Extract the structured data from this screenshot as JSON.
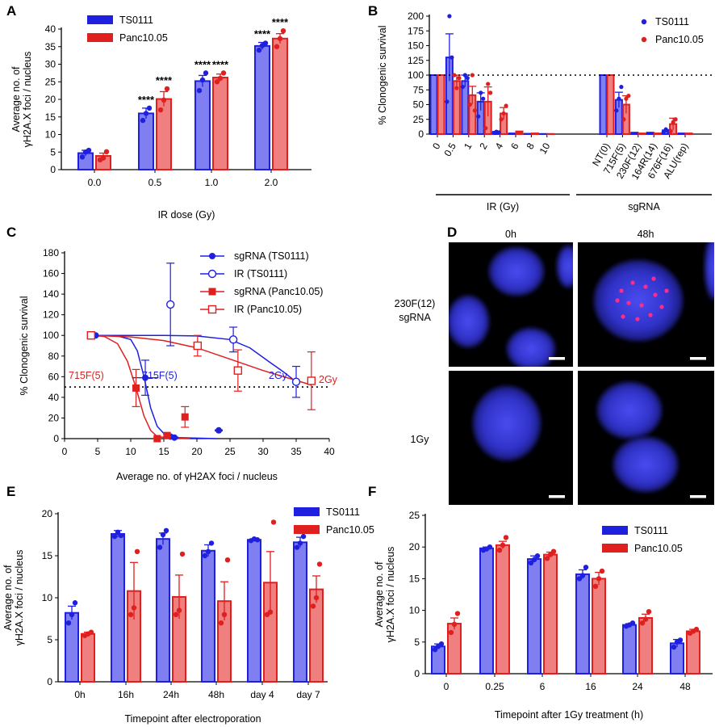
{
  "panels": [
    {
      "id": "A"
    },
    {
      "id": "B"
    },
    {
      "id": "C"
    },
    {
      "id": "D"
    },
    {
      "id": "E"
    },
    {
      "id": "F"
    }
  ],
  "colors": {
    "ts0111": "#1f1fe0",
    "panc": "#e01f1f",
    "ts0111_fill": "#7f7ff2",
    "panc_fill": "#f07f7f"
  },
  "chart_data": [
    {
      "panel": "A",
      "type": "bar",
      "title": "",
      "xlabel": "IR dose (Gy)",
      "ylabel_lines": [
        "Average no. of",
        "γH2A.X foci / nucleus"
      ],
      "categories": [
        "0.0",
        "0.5",
        "1.0",
        "2.0"
      ],
      "ylim": [
        0,
        40
      ],
      "yticks": [
        0,
        5,
        10,
        15,
        20,
        25,
        30,
        35,
        40
      ],
      "legend_position": "top-left",
      "series": [
        {
          "name": "TS0111",
          "color": "#1f1fe0",
          "values": [
            4.7,
            16.0,
            25.2,
            35.2
          ],
          "errors": [
            0.8,
            1.5,
            1.6,
            1.0
          ],
          "points": [
            [
              3.6,
              5.0,
              5.5
            ],
            [
              14.0,
              16.0,
              17.5
            ],
            [
              22.5,
              25.5,
              27.5
            ],
            [
              34.0,
              35.3,
              36.0
            ]
          ]
        },
        {
          "name": "Panc10.05",
          "color": "#e01f1f",
          "values": [
            3.9,
            20.1,
            26.2,
            37.3
          ],
          "errors": [
            0.8,
            2.1,
            1.0,
            1.4
          ],
          "points": [
            [
              2.8,
              3.3,
              5.1
            ],
            [
              17.0,
              19.8,
              23.0
            ],
            [
              25.0,
              26.0,
              27.5
            ],
            [
              35.0,
              37.3,
              39.5
            ]
          ]
        }
      ],
      "annotations": [
        {
          "category": "0.5",
          "series": "TS0111",
          "text": "****"
        },
        {
          "category": "0.5",
          "series": "Panc10.05",
          "text": "****"
        },
        {
          "category": "1.0",
          "series": "TS0111",
          "text": "****"
        },
        {
          "category": "1.0",
          "series": "Panc10.05",
          "text": "****"
        },
        {
          "category": "2.0",
          "series": "TS0111",
          "text": "****"
        },
        {
          "category": "2.0",
          "series": "Panc10.05",
          "text": "****"
        }
      ]
    },
    {
      "panel": "B",
      "type": "bar",
      "title": "",
      "ylabel": "% Clonogenic survival",
      "categories": [
        "0",
        "0.5",
        "1",
        "2",
        "4",
        "6",
        "8",
        "10",
        "NT(0)",
        "715F(5)",
        "230F(12)",
        "164R(14)",
        "676F(16)",
        "ALU(rep)"
      ],
      "groups": [
        {
          "label": "IR (Gy)",
          "from": 0,
          "to": 7
        },
        {
          "label": "sgRNA",
          "from": 8,
          "to": 13
        }
      ],
      "ylim": [
        0,
        200
      ],
      "yticks": [
        0,
        25,
        50,
        75,
        100,
        125,
        150,
        175,
        200
      ],
      "reference_line": 100,
      "legend_position": "top-right",
      "series": [
        {
          "name": "TS0111",
          "color": "#1f1fe0",
          "values": [
            100,
            130,
            90,
            55,
            3,
            1,
            0.5,
            0.3,
            100,
            58,
            2,
            2,
            5,
            1
          ],
          "errors": [
            0,
            40,
            10,
            15,
            1.5,
            0.5,
            0.3,
            0.2,
            0,
            13,
            1,
            1,
            2,
            0.5
          ]
        },
        {
          "name": "Panc10.05",
          "color": "#e01f1f",
          "values": [
            100,
            90,
            66,
            55,
            35,
            3,
            1,
            0.3,
            100,
            50,
            1,
            1,
            17,
            1
          ],
          "errors": [
            0,
            10,
            15,
            25,
            10,
            2,
            0.5,
            0.2,
            0,
            15,
            0.5,
            0.5,
            10,
            0.5
          ]
        }
      ]
    },
    {
      "panel": "C",
      "type": "scatter",
      "title": "",
      "xlabel": "Average no. of γH2AX foci / nucleus",
      "ylabel": "% Clonogenic survival",
      "xlim": [
        0,
        40
      ],
      "ylim": [
        0,
        180
      ],
      "xticks": [
        0,
        5,
        10,
        15,
        20,
        25,
        30,
        35,
        40
      ],
      "yticks": [
        0,
        20,
        40,
        60,
        80,
        100,
        120,
        140,
        160,
        180
      ],
      "reference_line": 50,
      "legend_position": "top-right",
      "series": [
        {
          "name": "sgRNA (TS0111)",
          "color": "#1f1fe0",
          "marker": "filled-circle",
          "points": [
            [
              4.7,
              100,
              0,
              0
            ],
            [
              12.2,
              59,
              2,
              17
            ],
            [
              16.0,
              2,
              0,
              1
            ],
            [
              16.6,
              1,
              0,
              0.5
            ],
            [
              23.3,
              8,
              0,
              0.5
            ]
          ]
        },
        {
          "name": "IR (TS0111)",
          "color": "#1f1fe0",
          "marker": "open-circle",
          "points": [
            [
              16.0,
              130,
              0,
              40
            ],
            [
              25.5,
              96,
              0,
              12
            ],
            [
              35.0,
              55,
              0,
              15
            ]
          ]
        },
        {
          "name": "sgRNA (Panc10.05)",
          "color": "#e01f1f",
          "marker": "filled-square",
          "points": [
            [
              4.0,
              100,
              0,
              0
            ],
            [
              10.8,
              49,
              0,
              18
            ],
            [
              14.0,
              0,
              0,
              0.5
            ],
            [
              15.5,
              3,
              0,
              1
            ],
            [
              18.2,
              21,
              0,
              10
            ]
          ]
        },
        {
          "name": "IR (Panc10.05)",
          "color": "#e01f1f",
          "marker": "open-square",
          "points": [
            [
              4.0,
              100,
              0,
              0
            ],
            [
              20.1,
              90,
              0,
              10
            ],
            [
              26.2,
              66,
              0,
              20
            ],
            [
              37.3,
              56,
              0,
              28
            ]
          ]
        }
      ],
      "curves": [
        {
          "color": "#1f1fe0",
          "points": [
            [
              4.7,
              100
            ],
            [
              8,
              99.5
            ],
            [
              10,
              96
            ],
            [
              11,
              85
            ],
            [
              12,
              60
            ],
            [
              13,
              30
            ],
            [
              14,
              12
            ],
            [
              15,
              5
            ],
            [
              16,
              2
            ],
            [
              17,
              1
            ],
            [
              23,
              0
            ]
          ]
        },
        {
          "color": "#1f1fe0",
          "points": [
            [
              5,
              100
            ],
            [
              15,
              100
            ],
            [
              20,
              99.5
            ],
            [
              25,
              96
            ],
            [
              28,
              88
            ],
            [
              31,
              74
            ],
            [
              33,
              65
            ],
            [
              35,
              55
            ]
          ]
        },
        {
          "color": "#e01f1f",
          "points": [
            [
              4,
              100
            ],
            [
              6,
              99
            ],
            [
              8,
              92
            ],
            [
              9.5,
              75
            ],
            [
              10.8,
              49
            ],
            [
              12,
              22
            ],
            [
              13,
              8
            ],
            [
              14,
              2
            ],
            [
              16,
              0.5
            ],
            [
              19,
              0
            ]
          ]
        },
        {
          "color": "#e01f1f",
          "points": [
            [
              4,
              100
            ],
            [
              10,
              98.5
            ],
            [
              15,
              95
            ],
            [
              20,
              88
            ],
            [
              25,
              77
            ],
            [
              30,
              66
            ],
            [
              37.3,
              52
            ]
          ]
        }
      ],
      "annotations": [
        {
          "text": "715F(5)",
          "color": "#e01f1f"
        },
        {
          "text": "715F(5)",
          "color": "#1f1fe0"
        },
        {
          "text": "2Gy",
          "color": "#1f1fe0"
        },
        {
          "text": "2Gy",
          "color": "#e01f1f"
        }
      ]
    },
    {
      "panel": "E",
      "type": "bar",
      "title": "",
      "xlabel": "Timepoint after electroporation",
      "ylabel_lines": [
        "Average no. of",
        "γH2A.X foci / nucleus"
      ],
      "categories": [
        "0h",
        "16h",
        "24h",
        "48h",
        "day 4",
        "day 7"
      ],
      "ylim": [
        0,
        20
      ],
      "yticks": [
        0,
        5,
        10,
        15,
        20
      ],
      "legend_position": "top-right",
      "series": [
        {
          "name": "TS0111",
          "color": "#1f1fe0",
          "values": [
            8.2,
            17.6,
            17.0,
            15.6,
            16.9,
            16.6
          ],
          "errors": [
            0.8,
            0.4,
            0.7,
            0.7,
            0.1,
            0.6
          ],
          "points": [
            [
              7.0,
              8.0,
              9.4
            ],
            [
              17.3,
              17.8,
              17.4
            ],
            [
              16.0,
              17.5,
              18.0
            ],
            [
              15.0,
              15.5,
              16.5
            ],
            [
              16.8,
              17.0,
              16.9
            ],
            [
              16.0,
              16.5,
              17.3
            ]
          ]
        },
        {
          "name": "Panc10.05",
          "color": "#e01f1f",
          "values": [
            5.7,
            10.8,
            10.1,
            9.6,
            11.8,
            11.0
          ],
          "errors": [
            0.2,
            3.4,
            2.6,
            2.3,
            3.7,
            1.6
          ],
          "points": [
            [
              5.5,
              5.7,
              5.9
            ],
            [
              8.0,
              8.8,
              15.5
            ],
            [
              8.0,
              8.5,
              15.2
            ],
            [
              7.0,
              8.0,
              14.5
            ],
            [
              8.0,
              8.3,
              19.0
            ],
            [
              9.0,
              10.0,
              14.0
            ]
          ]
        }
      ]
    },
    {
      "panel": "F",
      "type": "bar",
      "title": "",
      "xlabel": "Timepoint after 1Gy treatment (h)",
      "ylabel_lines": [
        "Average no. of",
        "γH2A.X foci / nucleus"
      ],
      "categories": [
        "0",
        "0.25",
        "6",
        "16",
        "24",
        "48"
      ],
      "ylim": [
        0,
        25
      ],
      "yticks": [
        0,
        5,
        10,
        15,
        20,
        25
      ],
      "legend_position": "top-right",
      "series": [
        {
          "name": "TS0111",
          "color": "#1f1fe0",
          "values": [
            4.3,
            19.8,
            18.1,
            15.7,
            7.7,
            4.8
          ],
          "errors": [
            0.4,
            0.2,
            0.5,
            0.7,
            0.2,
            0.6
          ],
          "points": [
            [
              3.8,
              4.3,
              4.7
            ],
            [
              19.5,
              19.7,
              20.0
            ],
            [
              17.5,
              18.0,
              18.6
            ],
            [
              15.0,
              15.5,
              16.8
            ],
            [
              7.5,
              7.7,
              8.0
            ],
            [
              4.2,
              5.0,
              5.3
            ]
          ]
        },
        {
          "name": "Panc10.05",
          "color": "#e01f1f",
          "values": [
            7.9,
            20.3,
            18.8,
            15.0,
            8.8,
            6.7
          ],
          "errors": [
            0.9,
            0.6,
            0.4,
            1.0,
            0.6,
            0.3
          ],
          "points": [
            [
              6.5,
              7.8,
              9.5
            ],
            [
              19.5,
              20.3,
              21.5
            ],
            [
              18.2,
              18.8,
              19.3
            ],
            [
              13.8,
              15.0,
              16.2
            ],
            [
              8.0,
              8.6,
              9.8
            ],
            [
              6.4,
              6.7,
              7.0
            ]
          ]
        }
      ]
    }
  ],
  "microscopy": {
    "col_labels": [
      "0h",
      "48h"
    ],
    "row_labels": [
      [
        "230F(12)",
        "sgRNA"
      ],
      [
        "1Gy"
      ]
    ],
    "cells": [
      "230F(12) sgRNA 0h",
      "230F(12) sgRNA 48h",
      "1Gy 0h",
      "1Gy 48h"
    ]
  }
}
